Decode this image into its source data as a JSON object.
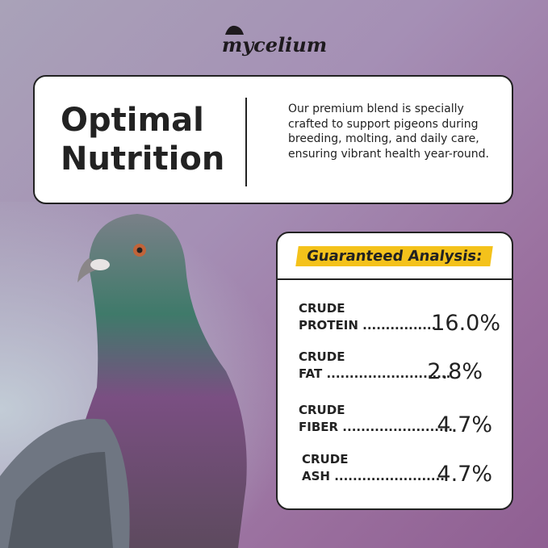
{
  "brand": {
    "logo": "mycelium"
  },
  "intro": {
    "title_line1": "Optimal",
    "title_line2": "Nutrition",
    "description": "Our premium blend is specially crafted to support pigeons during breeding, molting, and daily care, ensuring vibrant health year-round."
  },
  "analysis": {
    "heading": "Guaranteed Analysis:",
    "highlight_color": "#f4c21b",
    "rows": [
      {
        "line1": "CRUDE",
        "line2": "PROTEIN",
        "dots": "................",
        "value": "16.0%"
      },
      {
        "line1": "CRUDE",
        "line2": "FAT",
        "dots": "...........................",
        "value": "2.8%"
      },
      {
        "line1": "CRUDE",
        "line2": "FIBER",
        "dots": "........................",
        "value": "4.7%"
      },
      {
        "line1": "CRUDE",
        "line2": "ASH",
        "dots": "........................",
        "value": "4.7%"
      }
    ]
  }
}
